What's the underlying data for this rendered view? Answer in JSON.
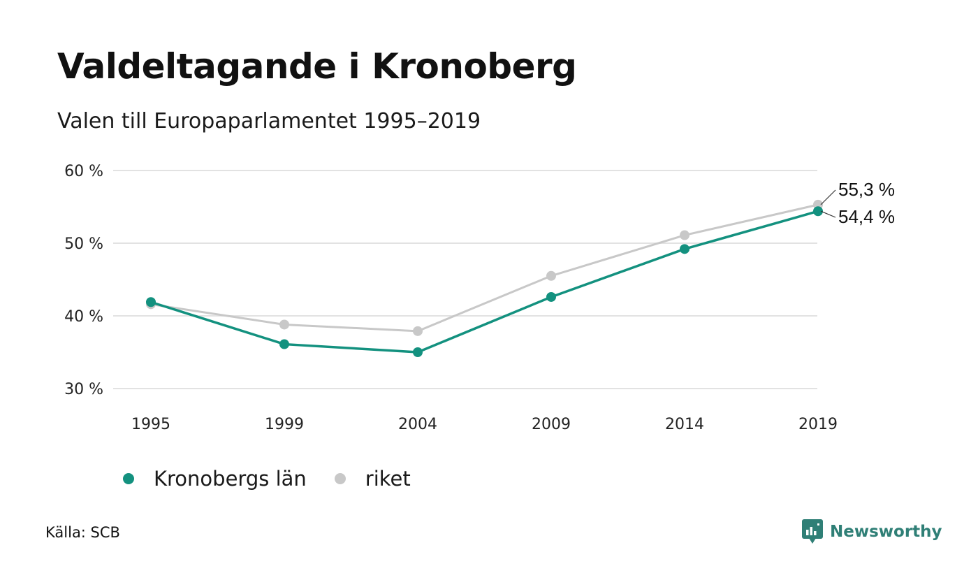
{
  "header": {
    "title": "Valdeltagande i Kronoberg",
    "subtitle": "Valen till Europaparlamentet 1995–2019"
  },
  "footer": {
    "source": "Källa: SCB",
    "brand": "Newsworthy"
  },
  "colors": {
    "kronoberg": "#13917f",
    "riket": "#c8c8c8",
    "grid": "#e2e2e2",
    "brand": "#2f7f76"
  },
  "chart_data": {
    "type": "line",
    "title": "Valdeltagande i Kronoberg",
    "subtitle": "Valen till Europaparlamentet 1995–2019",
    "x": [
      "1995",
      "1999",
      "2004",
      "2009",
      "2014",
      "2019"
    ],
    "series": [
      {
        "name": "riket",
        "values": [
          41.6,
          38.8,
          37.9,
          45.5,
          51.1,
          55.3
        ],
        "color": "#c8c8c8"
      },
      {
        "name": "Kronobergs län",
        "values": [
          41.9,
          36.1,
          35.0,
          42.6,
          49.2,
          54.4
        ],
        "color": "#13917f"
      }
    ],
    "end_labels": [
      "55,3 %",
      "54,4 %"
    ],
    "y_ticks": [
      {
        "value": 30,
        "label": "30 %"
      },
      {
        "value": 40,
        "label": "40 %"
      },
      {
        "value": 50,
        "label": "50 %"
      },
      {
        "value": 60,
        "label": "60 %"
      }
    ],
    "ylim": [
      30,
      60
    ],
    "grid": true,
    "legend": {
      "position": "bottom-left",
      "entries": [
        "Kronobergs län",
        "riket"
      ]
    }
  }
}
